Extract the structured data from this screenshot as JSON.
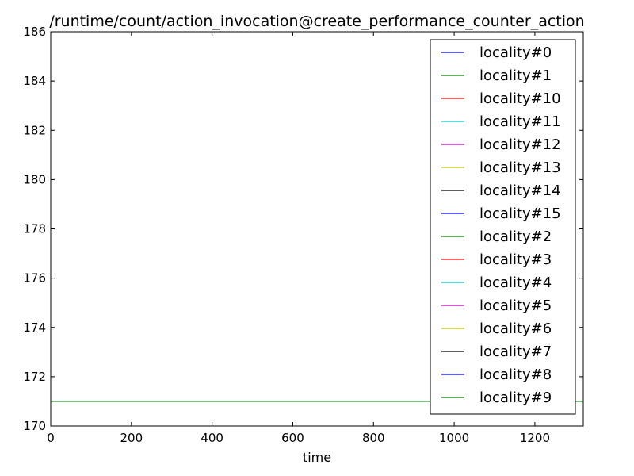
{
  "chart_data": {
    "type": "line",
    "title": "/runtime/count/action_invocation@create_performance_counter_action",
    "xlabel": "time",
    "ylabel": "",
    "xlim": [
      0,
      1320
    ],
    "ylim": [
      170,
      186
    ],
    "xticks": [
      0,
      200,
      400,
      600,
      800,
      1000,
      1200
    ],
    "yticks": [
      170,
      172,
      174,
      176,
      178,
      180,
      182,
      184,
      186
    ],
    "grid": false,
    "legend_position": "top-right",
    "series": [
      {
        "name": "locality#0",
        "color": "#0000ff",
        "x": [
          0,
          1320
        ],
        "y": [
          171,
          171
        ]
      },
      {
        "name": "locality#1",
        "color": "#008000",
        "x": [
          0,
          1320
        ],
        "y": [
          171,
          171
        ]
      },
      {
        "name": "locality#10",
        "color": "#ff0000",
        "x": [
          0,
          1320
        ],
        "y": [
          171,
          171
        ]
      },
      {
        "name": "locality#11",
        "color": "#00bfbf",
        "x": [
          0,
          1320
        ],
        "y": [
          171,
          171
        ]
      },
      {
        "name": "locality#12",
        "color": "#bf00bf",
        "x": [
          0,
          1320
        ],
        "y": [
          171,
          171
        ]
      },
      {
        "name": "locality#13",
        "color": "#bfbf00",
        "x": [
          0,
          1320
        ],
        "y": [
          171,
          171
        ]
      },
      {
        "name": "locality#14",
        "color": "#000000",
        "x": [
          0,
          1320
        ],
        "y": [
          171,
          171
        ]
      },
      {
        "name": "locality#15",
        "color": "#0000ff",
        "x": [
          0,
          1320
        ],
        "y": [
          171,
          171
        ]
      },
      {
        "name": "locality#2",
        "color": "#008000",
        "x": [
          0,
          1320
        ],
        "y": [
          171,
          171
        ]
      },
      {
        "name": "locality#3",
        "color": "#ff0000",
        "x": [
          0,
          1320
        ],
        "y": [
          171,
          171
        ]
      },
      {
        "name": "locality#4",
        "color": "#00bfbf",
        "x": [
          0,
          1320
        ],
        "y": [
          171,
          171
        ]
      },
      {
        "name": "locality#5",
        "color": "#bf00bf",
        "x": [
          0,
          1320
        ],
        "y": [
          171,
          171
        ]
      },
      {
        "name": "locality#6",
        "color": "#bfbf00",
        "x": [
          0,
          1320
        ],
        "y": [
          171,
          171
        ]
      },
      {
        "name": "locality#7",
        "color": "#000000",
        "x": [
          0,
          1320
        ],
        "y": [
          171,
          171
        ]
      },
      {
        "name": "locality#8",
        "color": "#0000ff",
        "x": [
          0,
          1320
        ],
        "y": [
          171,
          171
        ]
      },
      {
        "name": "locality#9",
        "color": "#008000",
        "x": [
          0,
          1320
        ],
        "y": [
          171,
          171
        ]
      }
    ]
  }
}
